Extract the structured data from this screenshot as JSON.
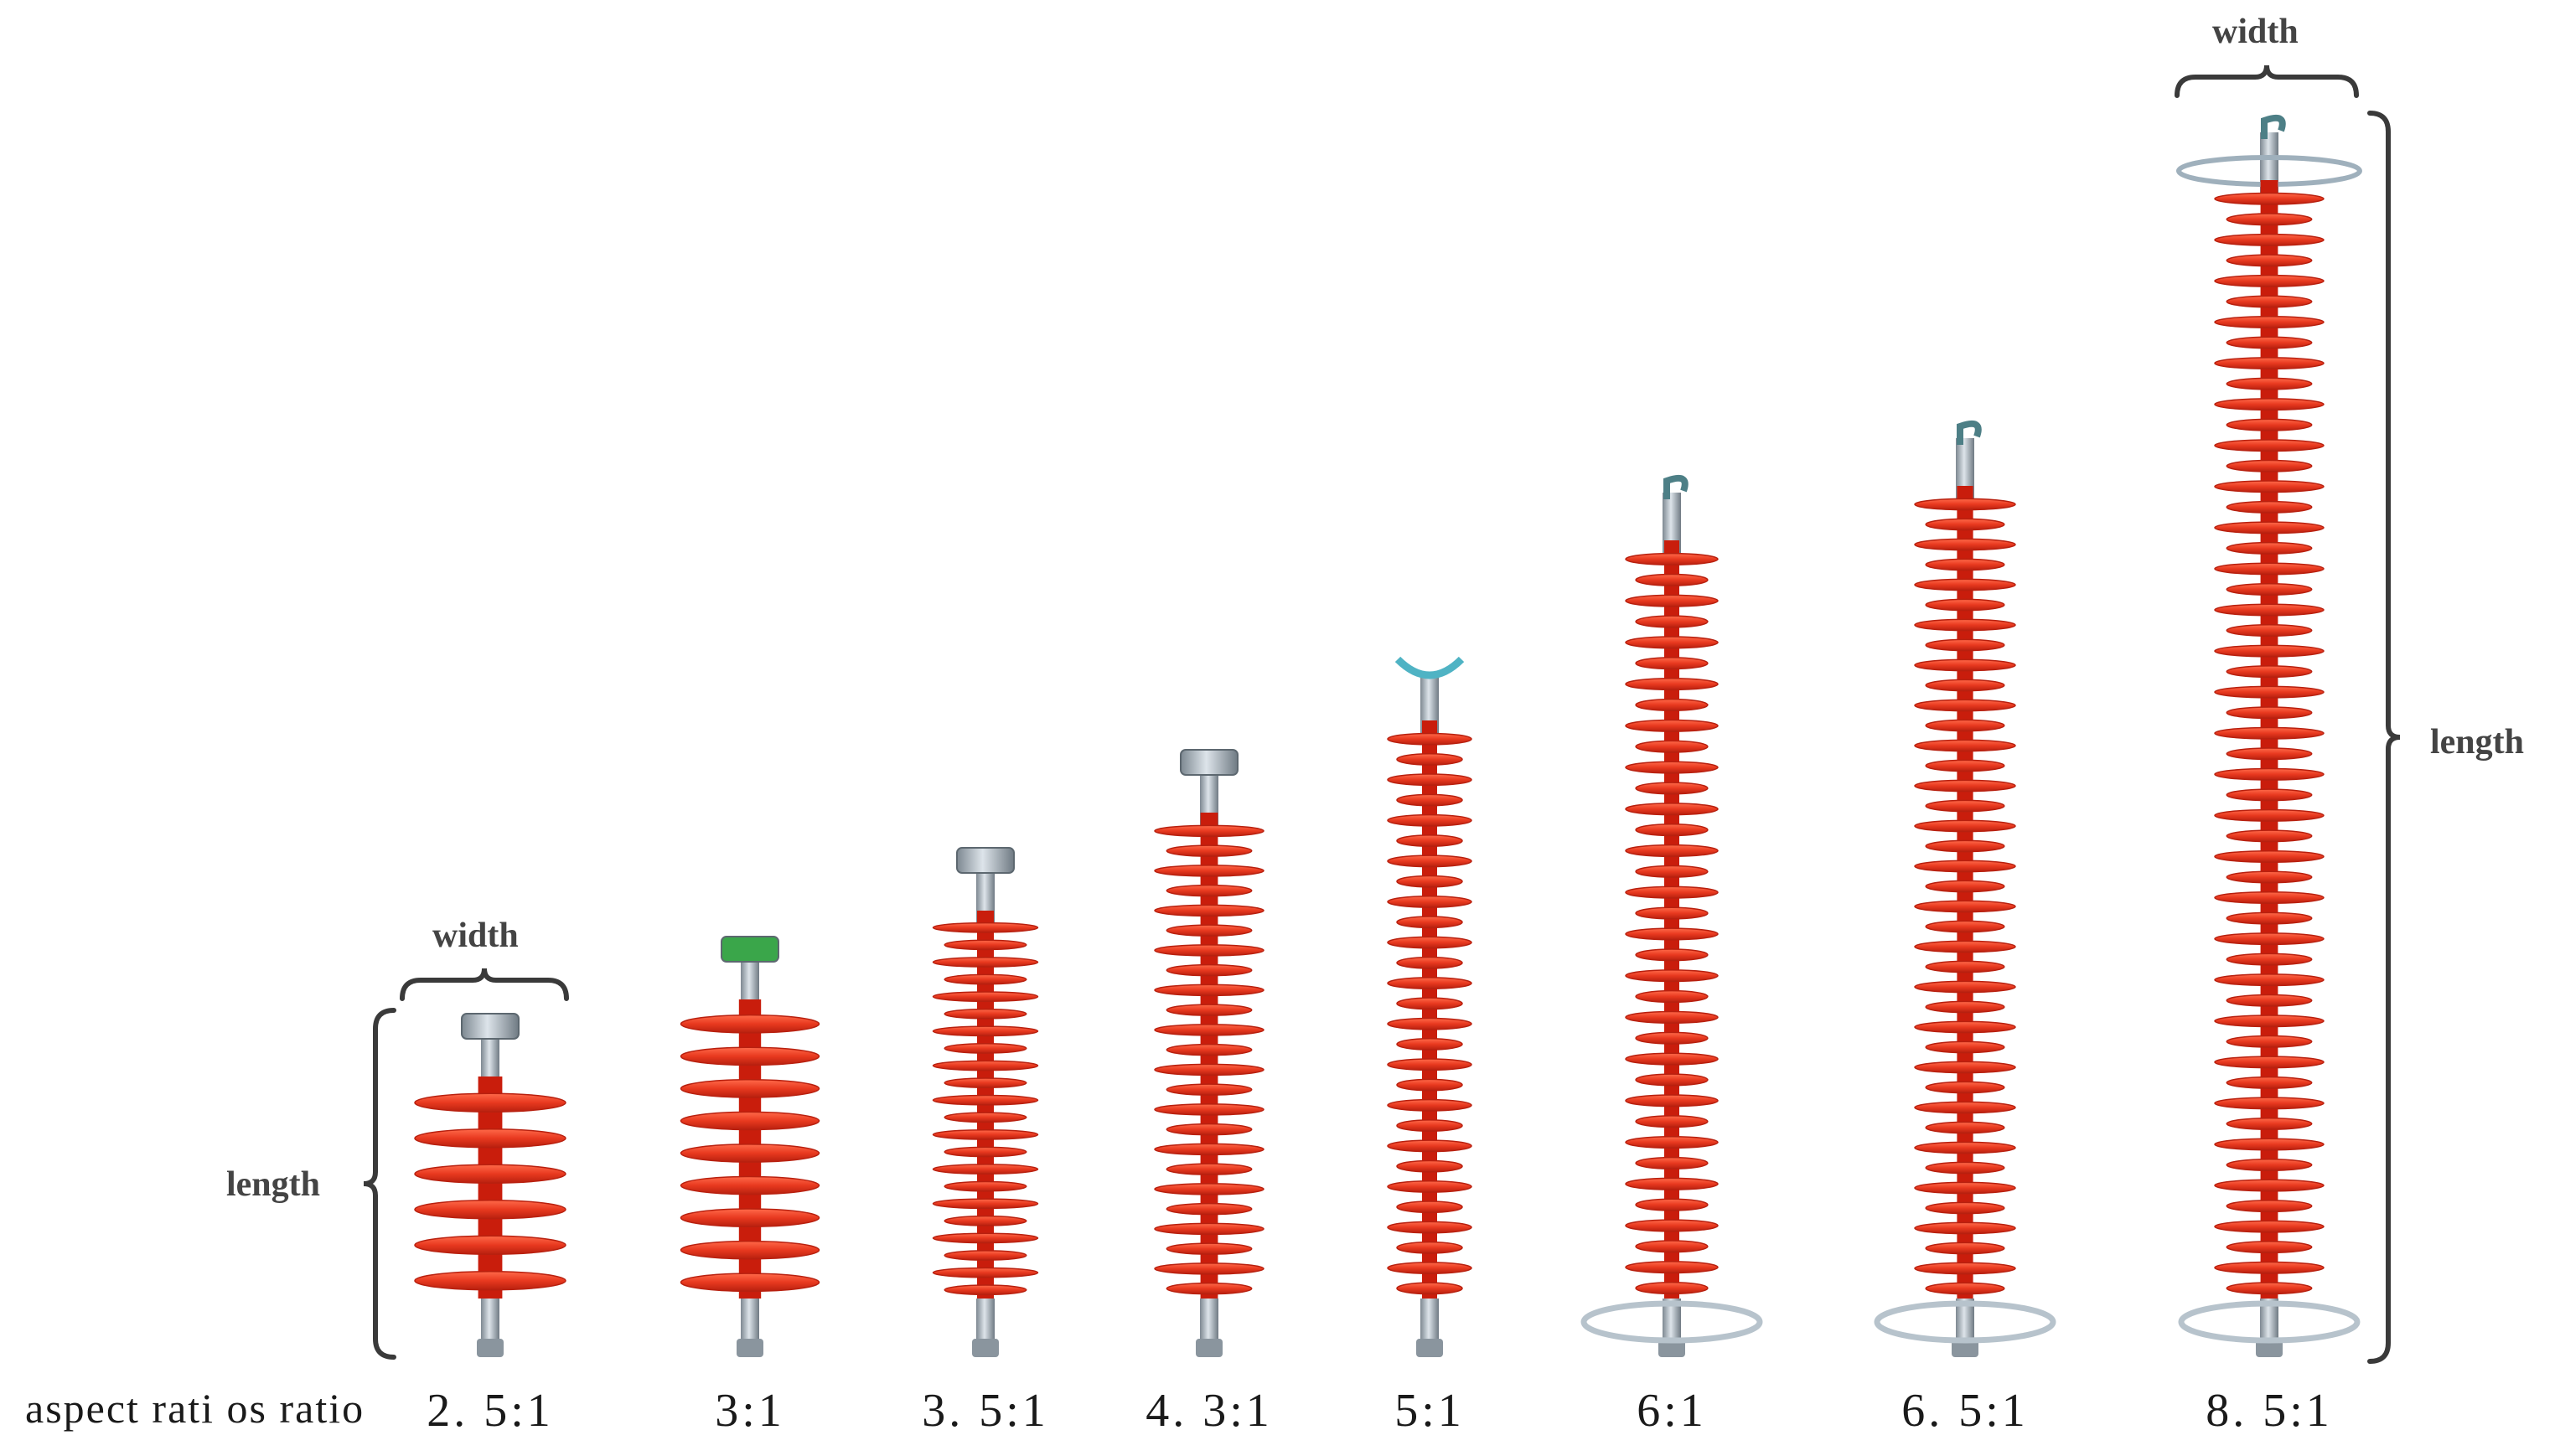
{
  "row_label": "aspect rati os ratio",
  "dimension_labels": {
    "small_width": "width",
    "small_length": "length",
    "large_width": "width",
    "large_length": "length"
  },
  "insulators": [
    {
      "ratio": "2. 5:1",
      "ratio_value": 2.5,
      "sheds": 6,
      "fitting": "cap",
      "grading_ring": false
    },
    {
      "ratio": "3:1",
      "ratio_value": 3.0,
      "sheds": 9,
      "fitting": "cap-green",
      "grading_ring": false
    },
    {
      "ratio": "3. 5:1",
      "ratio_value": 3.5,
      "sheds": 22,
      "fitting": "cap",
      "grading_ring": false
    },
    {
      "ratio": "4. 3:1",
      "ratio_value": 4.3,
      "sheds": 24,
      "fitting": "cap",
      "grading_ring": false
    },
    {
      "ratio": "5:1",
      "ratio_value": 5.0,
      "sheds": 28,
      "fitting": "clevis",
      "grading_ring": false
    },
    {
      "ratio": "6:1",
      "ratio_value": 6.0,
      "sheds": 36,
      "fitting": "hook",
      "grading_ring": true
    },
    {
      "ratio": "6. 5:1",
      "ratio_value": 6.5,
      "sheds": 40,
      "fitting": "hook",
      "grading_ring": true
    },
    {
      "ratio": "8. 5:1",
      "ratio_value": 8.5,
      "sheds": 54,
      "fitting": "hook",
      "grading_ring": true
    }
  ],
  "colors": {
    "shed": "#e8391f",
    "shed_dark": "#b8200f",
    "core": "#c91d0c",
    "metal": "#a9b4bd",
    "metal_light": "#dde4ea",
    "fitting_green": "#3aa64a",
    "bracket": "#3a3a3a"
  }
}
